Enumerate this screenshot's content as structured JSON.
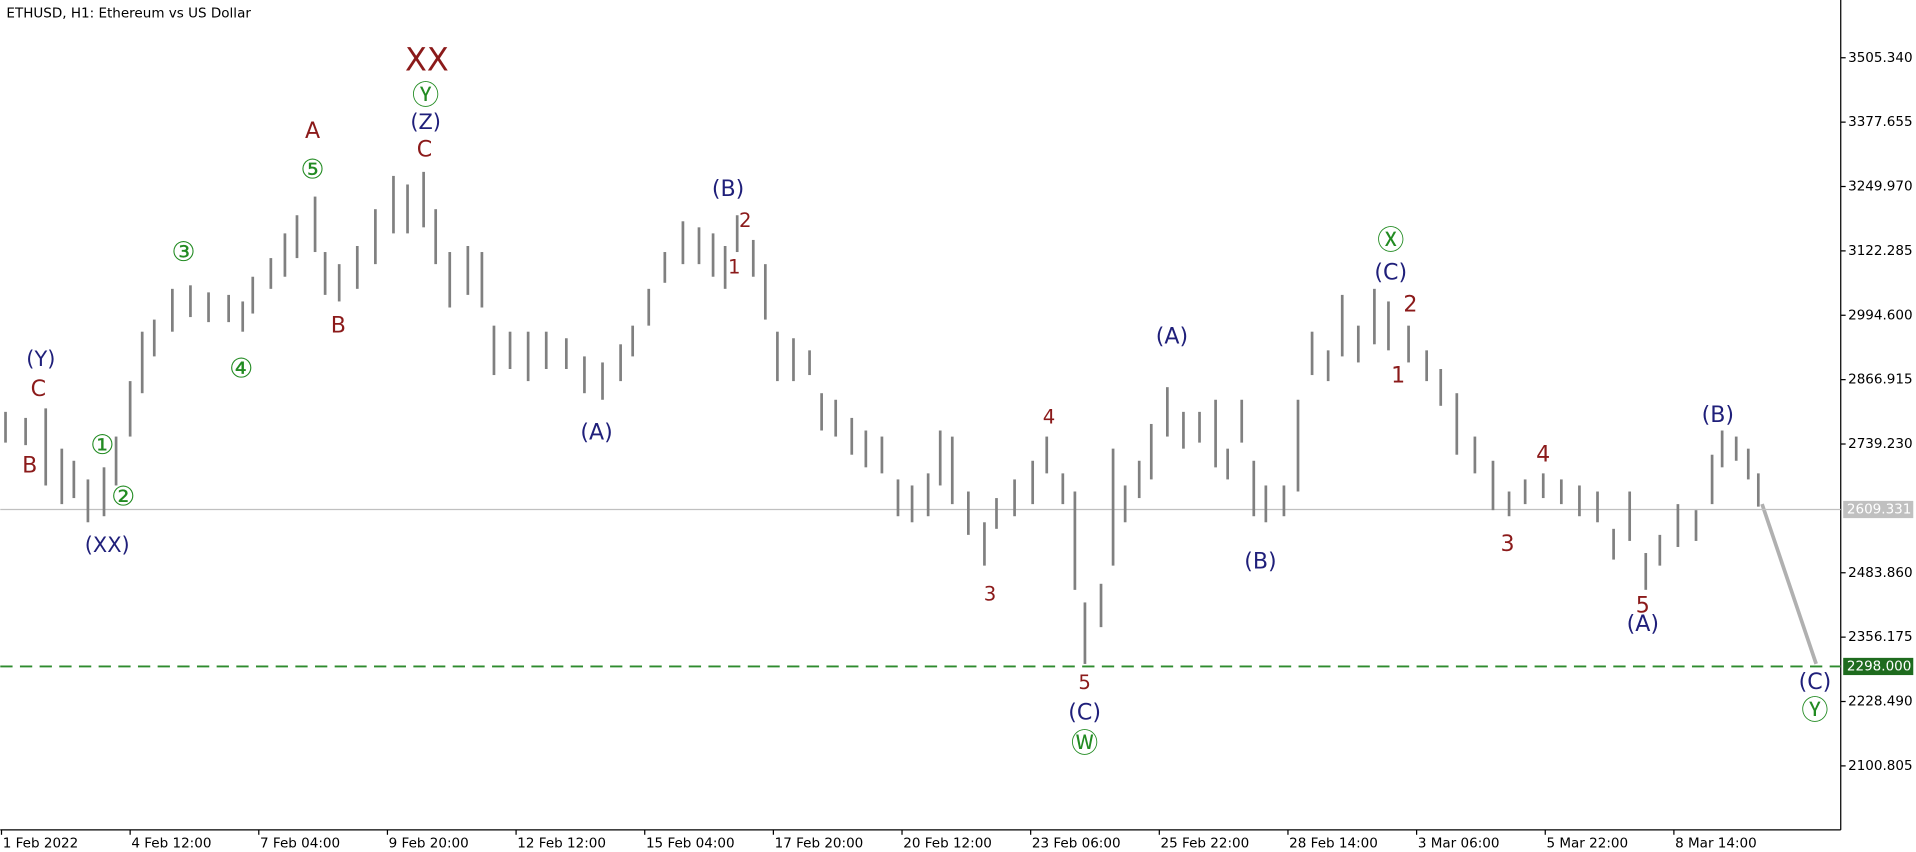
{
  "chart_data": {
    "type": "hilo",
    "title": "ETHUSD, H1:  Ethereum vs US Dollar",
    "color": "#808080",
    "ylim": [
      1973.9,
      3619.9
    ],
    "yticks": [
      {
        "value": 3505.34,
        "label": "3505.340"
      },
      {
        "value": 3377.655,
        "label": "3377.655"
      },
      {
        "value": 3249.97,
        "label": "3249.970"
      },
      {
        "value": 3122.285,
        "label": "3122.285"
      },
      {
        "value": 2994.6,
        "label": "2994.600"
      },
      {
        "value": 2866.915,
        "label": "2866.915"
      },
      {
        "value": 2739.23,
        "label": "2739.230"
      },
      {
        "value": 2483.86,
        "label": "2483.860"
      },
      {
        "value": 2356.175,
        "label": "2356.175"
      },
      {
        "value": 2228.49,
        "label": "2228.490"
      },
      {
        "value": 2100.805,
        "label": "2100.805"
      }
    ],
    "xlim": [
      0,
      915
    ],
    "xticks": [
      {
        "value": 0,
        "label": "1 Feb 2022"
      },
      {
        "value": 64,
        "label": "4 Feb 12:00"
      },
      {
        "value": 128,
        "label": "7 Feb 04:00"
      },
      {
        "value": 192,
        "label": "9 Feb 20:00"
      },
      {
        "value": 256,
        "label": "12 Feb 12:00"
      },
      {
        "value": 320,
        "label": "15 Feb 04:00"
      },
      {
        "value": 384,
        "label": "17 Feb 20:00"
      },
      {
        "value": 448,
        "label": "20 Feb 12:00"
      },
      {
        "value": 512,
        "label": "23 Feb 06:00"
      },
      {
        "value": 576,
        "label": "25 Feb 22:00"
      },
      {
        "value": 640,
        "label": "28 Feb 14:00"
      },
      {
        "value": 704,
        "label": "3 Mar 06:00"
      },
      {
        "value": 768,
        "label": "5 Mar 22:00"
      },
      {
        "value": 832,
        "label": "8 Mar 14:00"
      }
    ],
    "current_price": {
      "value": 2609.331,
      "label": "2609.331",
      "color": "#c0c0c0"
    },
    "target_level": {
      "value": 2298,
      "label": "2298.000",
      "color": "#2e8b2e"
    },
    "bars": {
      "x": [
        2,
        12,
        22,
        30,
        36,
        43,
        51,
        57,
        64,
        70,
        76,
        85,
        94,
        103,
        113,
        120,
        125,
        134,
        141,
        147,
        156,
        161,
        168,
        177,
        186,
        195,
        202,
        210,
        216,
        223,
        232,
        239,
        245,
        253,
        262,
        271,
        281,
        290,
        299,
        308,
        314,
        322,
        330,
        339,
        347,
        354,
        360,
        366,
        374,
        380,
        386,
        394,
        402,
        408,
        415,
        423,
        430,
        438,
        446,
        453,
        461,
        467,
        473,
        481,
        489,
        495,
        504,
        513,
        520,
        528,
        534,
        539,
        547,
        553,
        559,
        566,
        572,
        580,
        588,
        596,
        604,
        610,
        617,
        623,
        629,
        638,
        645,
        652,
        660,
        667,
        675,
        683,
        690,
        700,
        709,
        716,
        724,
        733,
        742,
        750,
        758,
        767,
        776,
        785,
        794,
        802,
        810,
        818,
        825,
        834,
        843,
        851,
        856,
        863,
        869,
        874
      ],
      "high": [
        2803,
        2791,
        2810,
        2730,
        2706,
        2669,
        2693,
        2754,
        2864,
        2962,
        2986,
        3047,
        3054,
        3040,
        3035,
        3022,
        3071,
        3108,
        3157,
        3193,
        3230,
        3120,
        3096,
        3132,
        3205,
        3271,
        3254,
        3279,
        3205,
        3120,
        3132,
        3120,
        2974,
        2962,
        2962,
        2962,
        2949,
        2913,
        2901,
        2937,
        2974,
        3047,
        3120,
        3181,
        3169,
        3157,
        3132,
        3193,
        3144,
        3096,
        2962,
        2949,
        2925,
        2840,
        2827,
        2791,
        2766,
        2754,
        2669,
        2657,
        2681,
        2766,
        2754,
        2645,
        2584,
        2632,
        2669,
        2706,
        2754,
        2681,
        2645,
        2425,
        2462,
        2730,
        2657,
        2706,
        2779,
        2852,
        2803,
        2803,
        2827,
        2730,
        2827,
        2706,
        2657,
        2657,
        2827,
        2962,
        2925,
        3035,
        2974,
        3047,
        3022,
        2974,
        2925,
        2888,
        2840,
        2754,
        2706,
        2645,
        2669,
        2681,
        2669,
        2657,
        2645,
        2571,
        2645,
        2523,
        2559,
        2620,
        2608,
        2718,
        2766,
        2754,
        2730,
        2681
      ],
      "low": [
        2742,
        2737,
        2657,
        2620,
        2632,
        2584,
        2596,
        2657,
        2754,
        2840,
        2913,
        2962,
        2991,
        2981,
        2981,
        2962,
        2998,
        3047,
        3071,
        3108,
        3120,
        3035,
        3022,
        3047,
        3096,
        3157,
        3157,
        3169,
        3096,
        3010,
        3035,
        3010,
        2876,
        2888,
        2864,
        2888,
        2888,
        2840,
        2827,
        2864,
        2913,
        2974,
        3059,
        3096,
        3096,
        3071,
        3047,
        3120,
        3071,
        2986,
        2864,
        2864,
        2876,
        2766,
        2754,
        2718,
        2693,
        2681,
        2596,
        2584,
        2596,
        2657,
        2620,
        2559,
        2498,
        2571,
        2596,
        2620,
        2681,
        2620,
        2450,
        2303,
        2376,
        2498,
        2584,
        2632,
        2669,
        2754,
        2730,
        2742,
        2693,
        2669,
        2742,
        2596,
        2584,
        2596,
        2645,
        2876,
        2864,
        2913,
        2901,
        2937,
        2925,
        2901,
        2864,
        2815,
        2718,
        2681,
        2608,
        2596,
        2620,
        2632,
        2620,
        2596,
        2584,
        2510,
        2547,
        2450,
        2498,
        2535,
        2547,
        2620,
        2693,
        2706,
        2669,
        2615
      ]
    },
    "annotations": [
      {
        "text": "(Y)",
        "color": "#1f1f7a"
      },
      {
        "text": "C",
        "color": "#8b1a1a"
      },
      {
        "text": "B",
        "color": "#8b1a1a"
      },
      {
        "text": "①",
        "color": "#228b22"
      },
      {
        "text": "②",
        "color": "#228b22"
      },
      {
        "text": "(XX)",
        "color": "#1f1f7a"
      },
      {
        "text": "③",
        "color": "#228b22"
      },
      {
        "text": "④",
        "color": "#228b22"
      },
      {
        "text": "A",
        "color": "#8b1a1a"
      },
      {
        "text": "⑤",
        "color": "#228b22"
      },
      {
        "text": "B",
        "color": "#8b1a1a"
      },
      {
        "text": "XX",
        "color": "#8b1a1a"
      },
      {
        "text": "Ⓨ",
        "color": "#228b22"
      },
      {
        "text": "(Z)",
        "color": "#1f1f7a"
      },
      {
        "text": "C",
        "color": "#8b1a1a"
      },
      {
        "text": "(A)",
        "color": "#1f1f7a"
      },
      {
        "text": "(B)",
        "color": "#1f1f7a"
      },
      {
        "text": "2",
        "color": "#8b1a1a"
      },
      {
        "text": "1",
        "color": "#8b1a1a"
      },
      {
        "text": "4",
        "color": "#8b1a1a"
      },
      {
        "text": "3",
        "color": "#8b1a1a"
      },
      {
        "text": "5",
        "color": "#8b1a1a"
      },
      {
        "text": "(C)",
        "color": "#1f1f7a"
      },
      {
        "text": "Ⓦ",
        "color": "#228b22"
      },
      {
        "text": "(A)",
        "color": "#1f1f7a"
      },
      {
        "text": "(B)",
        "color": "#1f1f7a"
      },
      {
        "text": "Ⓧ",
        "color": "#228b22"
      },
      {
        "text": "(C)",
        "color": "#1f1f7a"
      },
      {
        "text": "2",
        "color": "#8b1a1a"
      },
      {
        "text": "1",
        "color": "#8b1a1a"
      },
      {
        "text": "4",
        "color": "#8b1a1a"
      },
      {
        "text": "3",
        "color": "#8b1a1a"
      },
      {
        "text": "5",
        "color": "#8b1a1a"
      },
      {
        "text": "(A)",
        "color": "#1f1f7a"
      },
      {
        "text": "(B)",
        "color": "#1f1f7a"
      },
      {
        "text": "(C)",
        "color": "#1f1f7a"
      },
      {
        "text": "Ⓨ",
        "color": "#228b22"
      }
    ]
  }
}
